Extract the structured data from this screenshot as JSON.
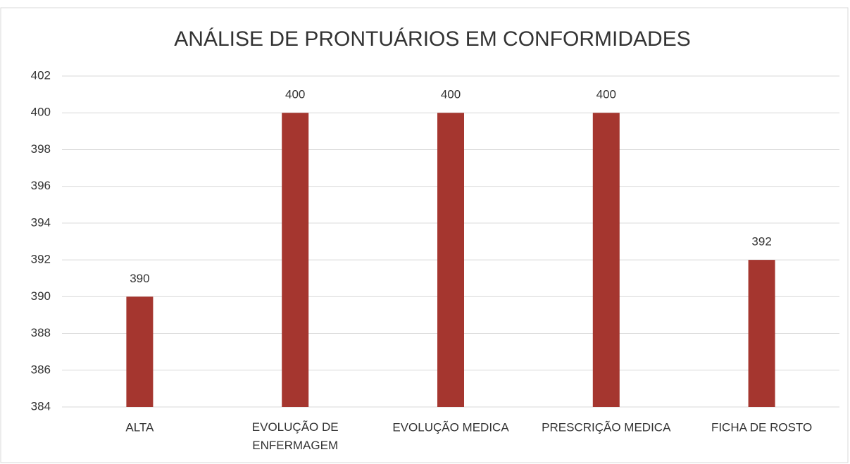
{
  "chart_data": {
    "type": "bar",
    "title": "ANÁLISE DE PRONTUÁRIOS EM CONFORMIDADES",
    "categories": [
      "ALTA",
      "EVOLUÇÃO DE ENFERMAGEM",
      "EVOLUÇÃO MEDICA",
      "PRESCRIÇÃO MEDICA",
      "FICHA DE ROSTO"
    ],
    "values": [
      390,
      400,
      400,
      400,
      392
    ],
    "color": "#a5362f",
    "ylim": [
      384,
      402
    ],
    "yticks": [
      384,
      386,
      388,
      390,
      392,
      394,
      396,
      398,
      400,
      402
    ],
    "grid": true
  }
}
